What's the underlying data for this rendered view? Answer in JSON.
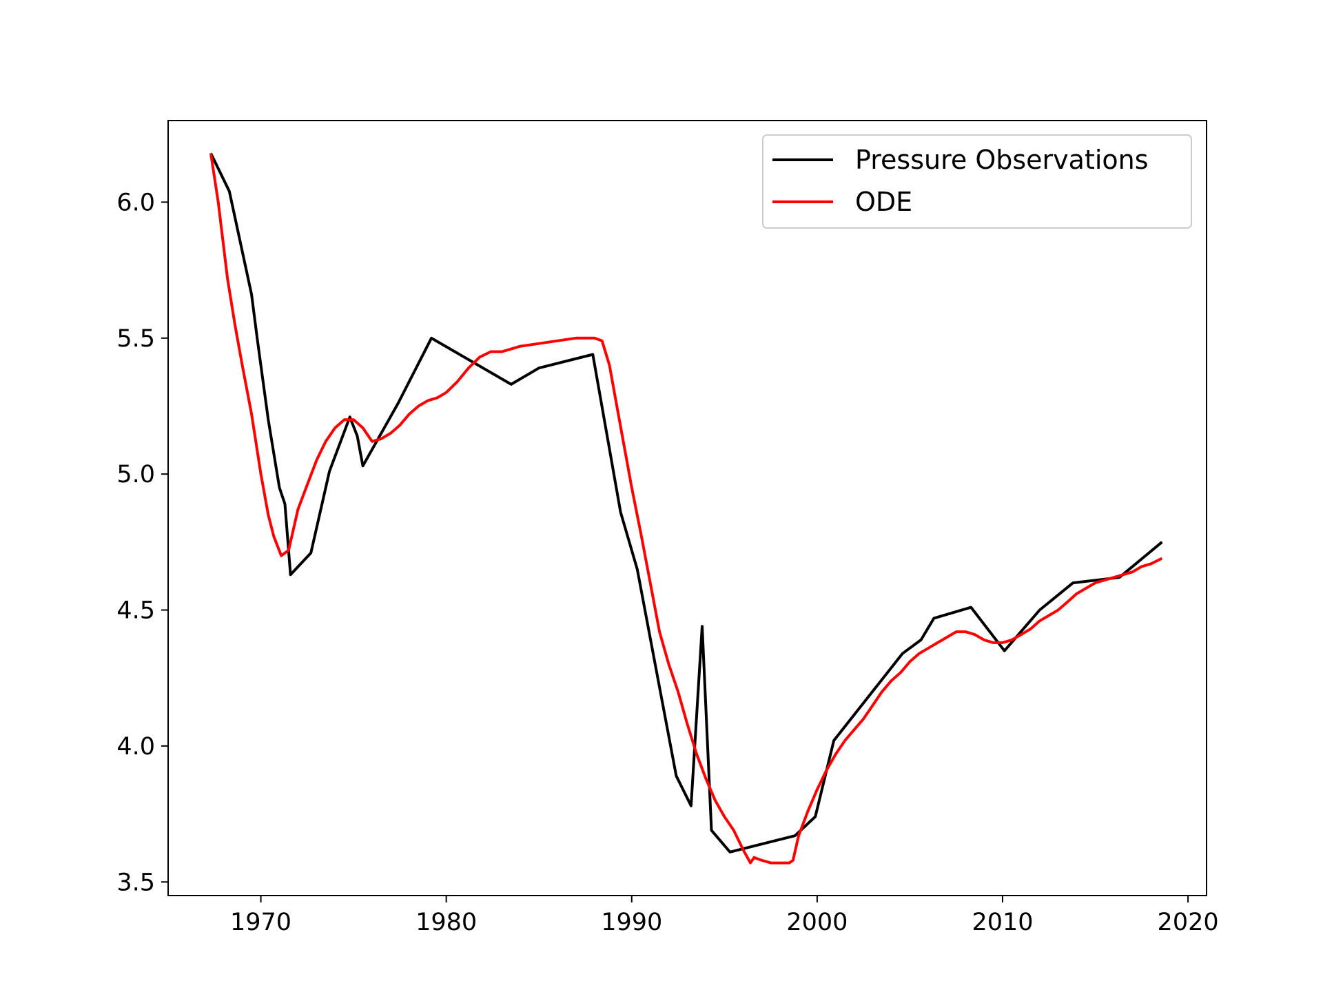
{
  "chart_data": {
    "type": "line",
    "title": "",
    "xlabel": "",
    "ylabel": "",
    "xlim": [
      1965,
      2021
    ],
    "ylim": [
      3.45,
      6.3
    ],
    "xticks": [
      1970,
      1980,
      1990,
      2000,
      2010,
      2020
    ],
    "xtick_labels": [
      "1970",
      "1980",
      "1990",
      "2000",
      "2010",
      "2020"
    ],
    "yticks": [
      3.5,
      4.0,
      4.5,
      5.0,
      5.5,
      6.0
    ],
    "ytick_labels": [
      "3.5",
      "4.0",
      "4.5",
      "5.0",
      "5.5",
      "6.0"
    ],
    "grid": false,
    "legend_position": "top-right",
    "series": [
      {
        "name": "Pressure Observations",
        "color": "#000000",
        "x": [
          1967.3,
          1968.3,
          1969.5,
          1969.8,
          1970.4,
          1971.0,
          1971.3,
          1971.6,
          1972.7,
          1973.7,
          1974.8,
          1975.2,
          1975.5,
          1977.4,
          1979.2,
          1983.5,
          1985.0,
          1987.9,
          1989.4,
          1990.3,
          1992.4,
          1993.2,
          1993.8,
          1994.3,
          1995.3,
          1998.8,
          1999.9,
          2000.9,
          2004.6,
          2005.6,
          2006.3,
          2008.3,
          2010.1,
          2012.0,
          2013.8,
          2016.3,
          2018.6
        ],
        "y": [
          6.18,
          6.04,
          5.66,
          5.5,
          5.2,
          4.95,
          4.89,
          4.63,
          4.71,
          5.01,
          5.21,
          5.14,
          5.03,
          5.26,
          5.5,
          5.33,
          5.39,
          5.44,
          4.86,
          4.65,
          3.89,
          3.78,
          4.44,
          3.69,
          3.61,
          3.67,
          3.74,
          4.02,
          4.34,
          4.39,
          4.47,
          4.51,
          4.35,
          4.5,
          4.6,
          4.62,
          4.75
        ]
      },
      {
        "name": "ODE",
        "color": "#ff0000",
        "x": [
          1967.3,
          1967.7,
          1968.2,
          1968.6,
          1969.0,
          1969.5,
          1970.0,
          1970.4,
          1970.7,
          1971.1,
          1971.5,
          1972.0,
          1972.5,
          1973.0,
          1973.5,
          1974.0,
          1974.5,
          1975.0,
          1975.5,
          1976.0,
          1976.5,
          1977.0,
          1977.5,
          1978.0,
          1978.5,
          1979.0,
          1979.5,
          1980.0,
          1980.6,
          1981.2,
          1981.8,
          1982.4,
          1983.0,
          1983.5,
          1984.0,
          1985.0,
          1986.0,
          1987.0,
          1987.5,
          1988.0,
          1988.4,
          1988.8,
          1989.2,
          1989.6,
          1990.0,
          1990.5,
          1991.0,
          1991.5,
          1992.0,
          1992.5,
          1993.0,
          1993.5,
          1994.0,
          1994.5,
          1995.0,
          1995.5,
          1996.0,
          1996.4,
          1996.6,
          1997.0,
          1997.5,
          1998.0,
          1998.5,
          1998.7,
          1999.0,
          1999.5,
          2000.0,
          2000.5,
          2001.0,
          2001.5,
          2002.0,
          2002.5,
          2003.0,
          2003.5,
          2004.0,
          2004.5,
          2005.0,
          2005.5,
          2006.0,
          2006.5,
          2007.0,
          2007.5,
          2008.0,
          2008.5,
          2009.0,
          2009.5,
          2010.0,
          2010.5,
          2011.0,
          2011.5,
          2012.0,
          2012.5,
          2013.0,
          2013.5,
          2014.0,
          2014.5,
          2015.0,
          2015.5,
          2016.0,
          2016.5,
          2017.0,
          2017.5,
          2018.0,
          2018.6
        ],
        "y": [
          6.18,
          6.0,
          5.72,
          5.55,
          5.4,
          5.22,
          5.0,
          4.85,
          4.77,
          4.7,
          4.72,
          4.87,
          4.96,
          5.05,
          5.12,
          5.17,
          5.2,
          5.2,
          5.17,
          5.12,
          5.13,
          5.15,
          5.18,
          5.22,
          5.25,
          5.27,
          5.28,
          5.3,
          5.34,
          5.39,
          5.43,
          5.45,
          5.45,
          5.46,
          5.47,
          5.48,
          5.49,
          5.5,
          5.5,
          5.5,
          5.49,
          5.4,
          5.25,
          5.1,
          4.95,
          4.78,
          4.6,
          4.42,
          4.3,
          4.2,
          4.08,
          3.97,
          3.88,
          3.8,
          3.74,
          3.69,
          3.62,
          3.57,
          3.59,
          3.58,
          3.57,
          3.57,
          3.57,
          3.58,
          3.67,
          3.76,
          3.84,
          3.91,
          3.97,
          4.02,
          4.06,
          4.1,
          4.15,
          4.2,
          4.24,
          4.27,
          4.31,
          4.34,
          4.36,
          4.38,
          4.4,
          4.42,
          4.42,
          4.41,
          4.39,
          4.38,
          4.38,
          4.39,
          4.41,
          4.43,
          4.46,
          4.48,
          4.5,
          4.53,
          4.56,
          4.58,
          4.6,
          4.61,
          4.62,
          4.63,
          4.64,
          4.66,
          4.67,
          4.69
        ]
      }
    ]
  }
}
